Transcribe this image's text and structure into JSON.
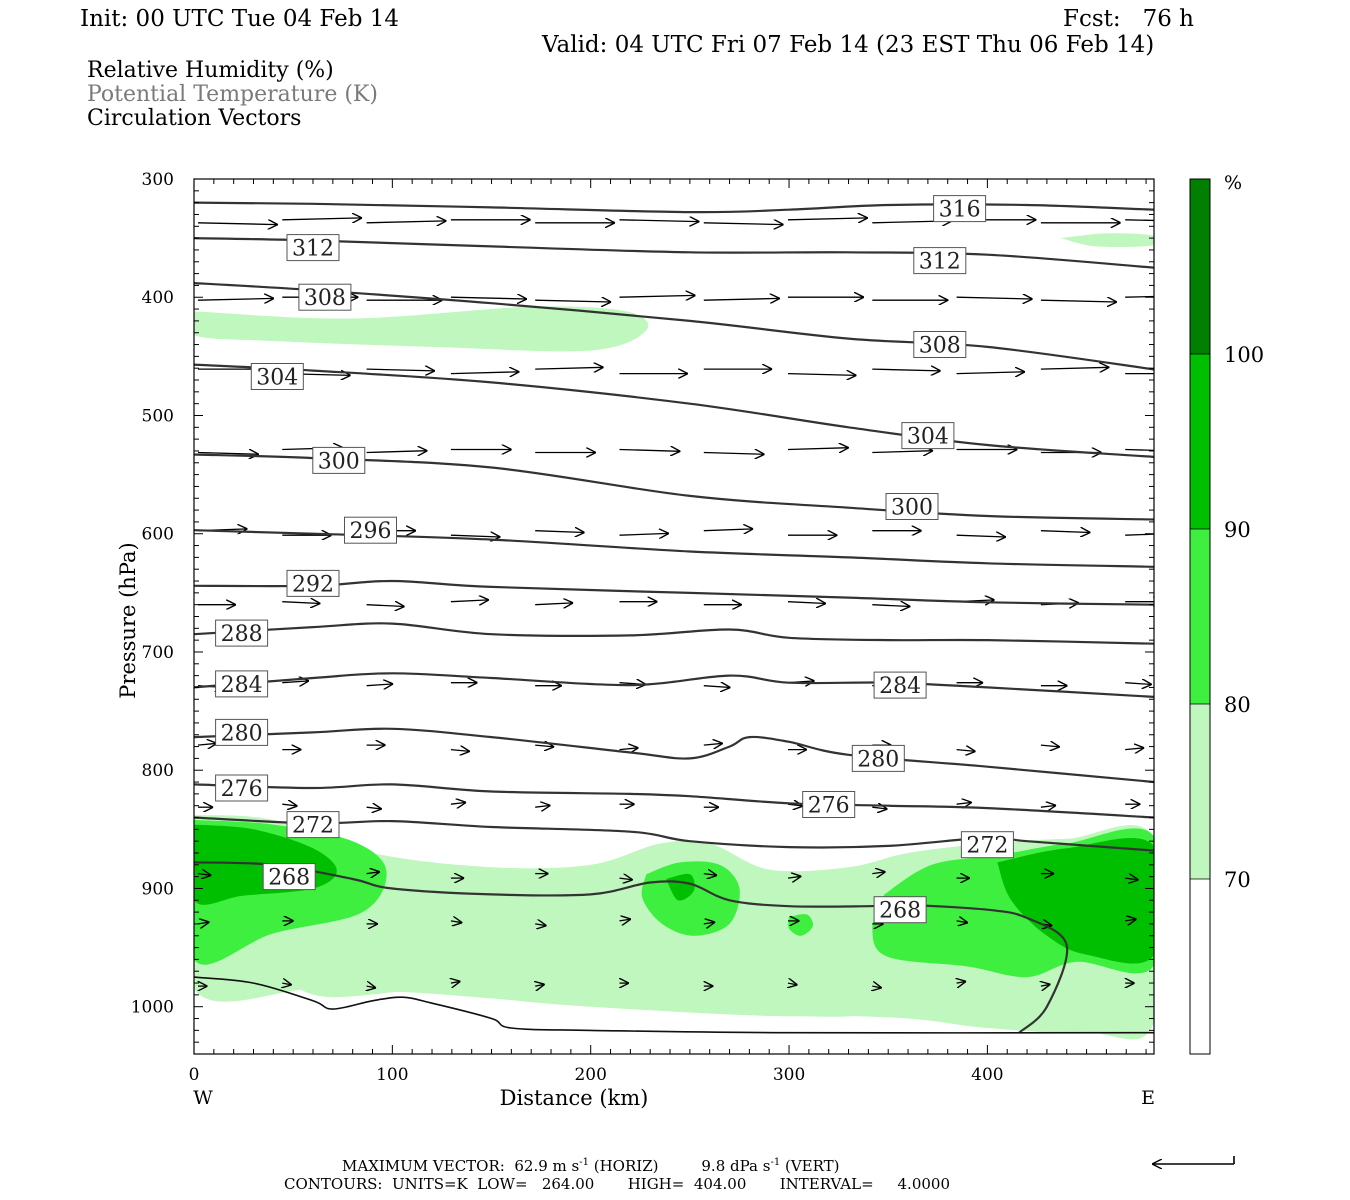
{
  "header": {
    "init": "Init: 00 UTC Tue 04 Feb 14",
    "fcst": "Fcst:   76 h",
    "valid": "Valid: 04 UTC Fri 07 Feb 14 (23 EST Thu 06 Feb 14)"
  },
  "legend": {
    "rh": "Relative Humidity (%)",
    "theta": "Potential Temperature (K)",
    "vectors": "Circulation Vectors"
  },
  "colors": {
    "rh70": "#bff7bf",
    "rh80": "#3fef3f",
    "rh90": "#00bf00",
    "rh100": "#007f00",
    "contour": "#333333",
    "label_border": "#555555"
  },
  "chart_data": {
    "type": "cross-section",
    "xlabel": "Distance (km)",
    "ylabel": "Pressure (hPa)",
    "xlim": [
      0,
      484
    ],
    "ylim": [
      1040,
      300
    ],
    "x_ticks": [
      0,
      100,
      200,
      300,
      400
    ],
    "x_tick_labels": [
      "0",
      "100",
      "200",
      "300",
      "400"
    ],
    "y_ticks": [
      300,
      400,
      500,
      600,
      700,
      800,
      900,
      1000
    ],
    "y_tick_labels": [
      "300",
      "400",
      "500",
      "600",
      "700",
      "800",
      "900",
      "1000"
    ],
    "x_ends": {
      "left": "W",
      "right": "E"
    },
    "colorbar": {
      "unit": "%",
      "levels": [
        70,
        80,
        90,
        100
      ],
      "labels": [
        "70",
        "80",
        "90",
        "100"
      ]
    },
    "theta_contours": [
      {
        "label": "316",
        "points": [
          [
            0,
            320
          ],
          [
            60,
            321
          ],
          [
            150,
            324
          ],
          [
            250,
            328
          ],
          [
            300,
            326
          ],
          [
            350,
            322
          ],
          [
            420,
            322
          ],
          [
            484,
            326
          ]
        ],
        "labels_at": [
          [
            386,
            325
          ]
        ]
      },
      {
        "label": "312",
        "points": [
          [
            0,
            350
          ],
          [
            60,
            352
          ],
          [
            150,
            357
          ],
          [
            250,
            362
          ],
          [
            330,
            362
          ],
          [
            400,
            364
          ],
          [
            484,
            375
          ]
        ],
        "labels_at": [
          [
            60,
            358
          ],
          [
            376,
            369
          ]
        ]
      },
      {
        "label": "308",
        "points": [
          [
            0,
            388
          ],
          [
            60,
            394
          ],
          [
            150,
            405
          ],
          [
            250,
            420
          ],
          [
            330,
            435
          ],
          [
            400,
            442
          ],
          [
            484,
            461
          ]
        ],
        "labels_at": [
          [
            66,
            400
          ],
          [
            376,
            440
          ]
        ]
      },
      {
        "label": "304",
        "points": [
          [
            0,
            457
          ],
          [
            60,
            462
          ],
          [
            150,
            472
          ],
          [
            250,
            490
          ],
          [
            330,
            510
          ],
          [
            400,
            525
          ],
          [
            484,
            535
          ]
        ],
        "labels_at": [
          [
            42,
            467
          ],
          [
            370,
            517
          ]
        ]
      },
      {
        "label": "300",
        "points": [
          [
            0,
            533
          ],
          [
            60,
            536
          ],
          [
            150,
            544
          ],
          [
            250,
            568
          ],
          [
            330,
            578
          ],
          [
            400,
            585
          ],
          [
            484,
            588
          ]
        ],
        "labels_at": [
          [
            73,
            538
          ],
          [
            362,
            577
          ]
        ]
      },
      {
        "label": "296",
        "points": [
          [
            0,
            597
          ],
          [
            60,
            600
          ],
          [
            150,
            605
          ],
          [
            250,
            615
          ],
          [
            330,
            620
          ],
          [
            400,
            625
          ],
          [
            484,
            628
          ]
        ],
        "labels_at": [
          [
            89,
            597
          ]
        ]
      },
      {
        "label": "292",
        "points": [
          [
            0,
            644
          ],
          [
            60,
            644
          ],
          [
            100,
            640
          ],
          [
            150,
            645
          ],
          [
            250,
            650
          ],
          [
            330,
            654
          ],
          [
            400,
            658
          ],
          [
            484,
            660
          ]
        ],
        "labels_at": [
          [
            60,
            642
          ]
        ]
      },
      {
        "label": "288",
        "points": [
          [
            0,
            685
          ],
          [
            60,
            679
          ],
          [
            100,
            676
          ],
          [
            150,
            685
          ],
          [
            220,
            686
          ],
          [
            270,
            681
          ],
          [
            300,
            688
          ],
          [
            350,
            690
          ],
          [
            400,
            690
          ],
          [
            484,
            693
          ]
        ],
        "labels_at": [
          [
            24,
            684
          ]
        ]
      },
      {
        "label": "284",
        "points": [
          [
            0,
            730
          ],
          [
            60,
            722
          ],
          [
            100,
            718
          ],
          [
            150,
            722
          ],
          [
            220,
            728
          ],
          [
            270,
            720
          ],
          [
            300,
            726
          ],
          [
            350,
            726
          ],
          [
            400,
            730
          ],
          [
            484,
            738
          ]
        ],
        "labels_at": [
          [
            24,
            727
          ],
          [
            356,
            728
          ]
        ]
      },
      {
        "label": "280",
        "points": [
          [
            0,
            772
          ],
          [
            60,
            768
          ],
          [
            100,
            765
          ],
          [
            150,
            772
          ],
          [
            220,
            785
          ],
          [
            250,
            790
          ],
          [
            270,
            780
          ],
          [
            280,
            772
          ],
          [
            300,
            776
          ],
          [
            330,
            787
          ],
          [
            400,
            797
          ],
          [
            484,
            810
          ]
        ],
        "labels_at": [
          [
            24,
            768
          ],
          [
            345,
            790
          ]
        ]
      },
      {
        "label": "276",
        "points": [
          [
            0,
            812
          ],
          [
            60,
            815
          ],
          [
            100,
            812
          ],
          [
            150,
            818
          ],
          [
            220,
            820
          ],
          [
            250,
            822
          ],
          [
            300,
            828
          ],
          [
            350,
            830
          ],
          [
            400,
            832
          ],
          [
            484,
            840
          ]
        ],
        "labels_at": [
          [
            24,
            815
          ],
          [
            320,
            829
          ]
        ]
      },
      {
        "label": "272",
        "points": [
          [
            0,
            840
          ],
          [
            60,
            845
          ],
          [
            100,
            843
          ],
          [
            150,
            848
          ],
          [
            220,
            852
          ],
          [
            250,
            860
          ],
          [
            300,
            865
          ],
          [
            350,
            864
          ],
          [
            400,
            857
          ],
          [
            420,
            860
          ],
          [
            484,
            868
          ]
        ],
        "labels_at": [
          [
            60,
            846
          ],
          [
            400,
            863
          ]
        ]
      },
      {
        "label": "268",
        "points": [
          [
            0,
            878
          ],
          [
            40,
            880
          ],
          [
            80,
            892
          ],
          [
            100,
            900
          ],
          [
            150,
            905
          ],
          [
            200,
            905
          ],
          [
            230,
            895
          ],
          [
            250,
            896
          ],
          [
            270,
            910
          ],
          [
            300,
            915
          ],
          [
            340,
            915
          ],
          [
            360,
            914
          ],
          [
            400,
            918
          ],
          [
            420,
            925
          ],
          [
            440,
            948
          ],
          [
            430,
            1000
          ],
          [
            416,
            1022
          ]
        ],
        "labels_at": [
          [
            48,
            890
          ],
          [
            356,
            918
          ]
        ]
      }
    ],
    "ground": {
      "points": [
        [
          0,
          975
        ],
        [
          30,
          980
        ],
        [
          60,
          995
        ],
        [
          70,
          1002
        ],
        [
          90,
          995
        ],
        [
          105,
          992
        ],
        [
          120,
          997
        ],
        [
          150,
          1010
        ],
        [
          160,
          1018
        ],
        [
          200,
          1020
        ],
        [
          300,
          1022
        ],
        [
          484,
          1022
        ]
      ]
    },
    "rh_regions": [
      {
        "level": 70,
        "region": "upper-left band near 420 hPa, x 0–225"
      },
      {
        "level": 70,
        "region": "small patch near 350 hPa, x 435–480"
      },
      {
        "level": 70,
        "region": "lower layer 860–1030 hPa across section"
      },
      {
        "level": 80,
        "region": "x 0–95 near 850–960 hPa; x 225–270; x 300–310; x 345–484"
      },
      {
        "level": 90,
        "region": "x 0–70 near 860–900 hPa; x 240–250; x 410–484 near 870–950 hPa"
      }
    ],
    "vectors_note": "Circulation vectors predominantly west-to-east (rightward)",
    "reference_vector": {
      "horizontal": 62.9,
      "horizontal_unit": "m s-1",
      "vertical": 9.8,
      "vertical_unit": "dPa s-1"
    }
  },
  "footer": {
    "max_vector_prefix": "MAXIMUM VECTOR:  62.9 m s",
    "max_vector_mid": " (HORIZ)         9.8 dPa s",
    "max_vector_suffix": " (VERT)",
    "exponent": "-1",
    "contours": "CONTOURS:  UNITS=K  LOW=   264.00       HIGH=  404.00       INTERVAL=     4.0000"
  }
}
